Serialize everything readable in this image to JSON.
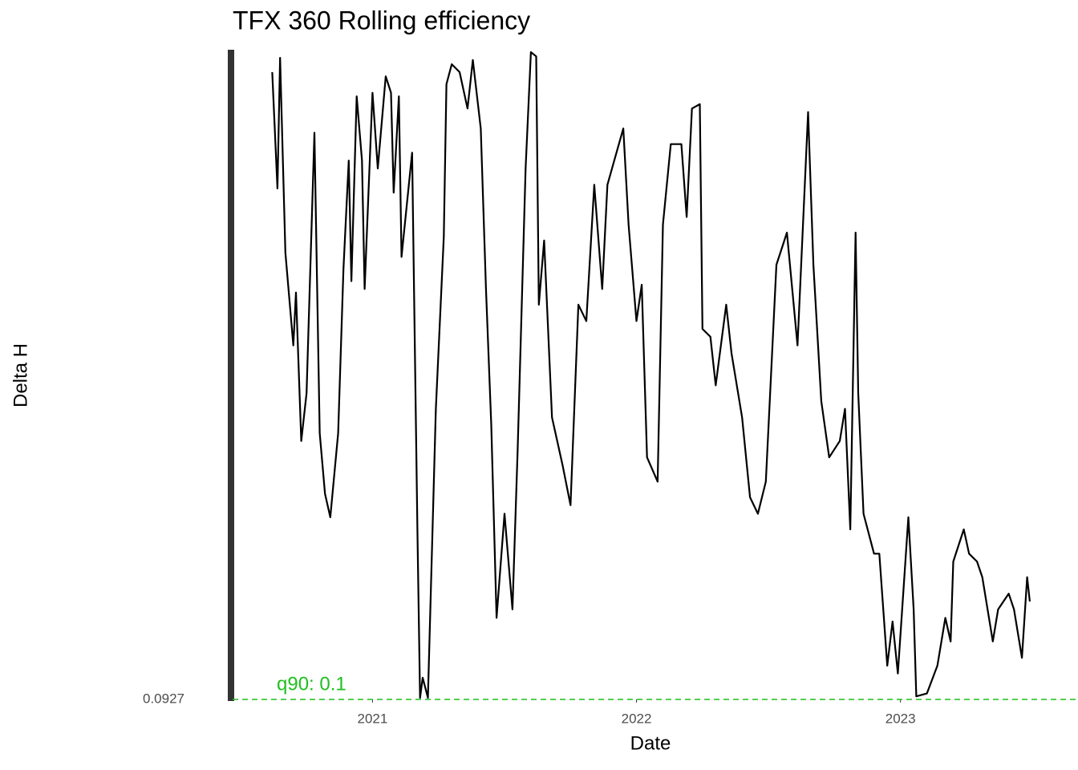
{
  "chart_data": {
    "type": "line",
    "title": "TFX 360 Rolling efficiency",
    "xlabel": "Date",
    "ylabel": "Delta H",
    "xlim": [
      2020.47,
      2023.63
    ],
    "xticks": [
      2021,
      2022,
      2023
    ],
    "ylim": [
      0.0927,
      1.0
    ],
    "yticks": [
      0.0927
    ],
    "color": "#000000",
    "threshold": 0.0927,
    "threshold_color": "#1fbf1f",
    "annotation": "q90: 0.1",
    "x": [
      2020.62,
      2020.64,
      2020.65,
      2020.67,
      2020.7,
      2020.71,
      2020.73,
      2020.75,
      2020.78,
      2020.8,
      2020.82,
      2020.84,
      2020.87,
      2020.89,
      2020.91,
      2020.92,
      2020.94,
      2020.96,
      2020.97,
      2021.0,
      2021.02,
      2021.05,
      2021.07,
      2021.08,
      2021.1,
      2021.11,
      2021.15,
      2021.17,
      2021.18,
      2021.19,
      2021.21,
      2021.23,
      2021.24,
      2021.27,
      2021.28,
      2021.3,
      2021.33,
      2021.36,
      2021.38,
      2021.41,
      2021.43,
      2021.45,
      2021.47,
      2021.5,
      2021.53,
      2021.55,
      2021.58,
      2021.6,
      2021.62,
      2021.63,
      2021.65,
      2021.68,
      2021.72,
      2021.75,
      2021.78,
      2021.81,
      2021.84,
      2021.87,
      2021.89,
      2021.95,
      2021.97,
      2022.0,
      2022.02,
      2022.04,
      2022.08,
      2022.1,
      2022.13,
      2022.17,
      2022.19,
      2022.21,
      2022.24,
      2022.25,
      2022.28,
      2022.3,
      2022.34,
      2022.36,
      2022.4,
      2022.43,
      2022.46,
      2022.49,
      2022.53,
      2022.57,
      2022.61,
      2022.65,
      2022.67,
      2022.7,
      2022.73,
      2022.77,
      2022.79,
      2022.81,
      2022.83,
      2022.84,
      2022.86,
      2022.9,
      2022.92,
      2022.95,
      2022.97,
      2022.99,
      2023.03,
      2023.05,
      2023.06,
      2023.1,
      2023.14,
      2023.17,
      2023.19,
      2023.2,
      2023.24,
      2023.26,
      2023.29,
      2023.31,
      2023.35,
      2023.37,
      2023.41,
      2023.43,
      2023.46,
      2023.48,
      2023.49
    ],
    "values": [
      0.972,
      0.809,
      0.992,
      0.719,
      0.589,
      0.663,
      0.455,
      0.522,
      0.887,
      0.466,
      0.381,
      0.348,
      0.466,
      0.696,
      0.848,
      0.679,
      0.938,
      0.848,
      0.668,
      0.943,
      0.837,
      0.966,
      0.943,
      0.803,
      0.938,
      0.713,
      0.859,
      0.331,
      0.095,
      0.123,
      0.095,
      0.365,
      0.5,
      0.741,
      0.955,
      0.983,
      0.972,
      0.921,
      0.989,
      0.893,
      0.668,
      0.477,
      0.207,
      0.353,
      0.219,
      0.443,
      0.837,
      1.0,
      0.994,
      0.646,
      0.736,
      0.488,
      0.421,
      0.365,
      0.646,
      0.623,
      0.814,
      0.668,
      0.814,
      0.893,
      0.758,
      0.623,
      0.674,
      0.432,
      0.398,
      0.758,
      0.871,
      0.871,
      0.769,
      0.921,
      0.927,
      0.612,
      0.601,
      0.533,
      0.646,
      0.578,
      0.488,
      0.376,
      0.353,
      0.398,
      0.702,
      0.747,
      0.589,
      0.916,
      0.702,
      0.511,
      0.432,
      0.455,
      0.5,
      0.331,
      0.747,
      0.522,
      0.353,
      0.297,
      0.297,
      0.14,
      0.202,
      0.129,
      0.348,
      0.219,
      0.097,
      0.101,
      0.14,
      0.207,
      0.174,
      0.286,
      0.331,
      0.297,
      0.286,
      0.264,
      0.174,
      0.219,
      0.241,
      0.219,
      0.151,
      0.264,
      0.23
    ]
  }
}
